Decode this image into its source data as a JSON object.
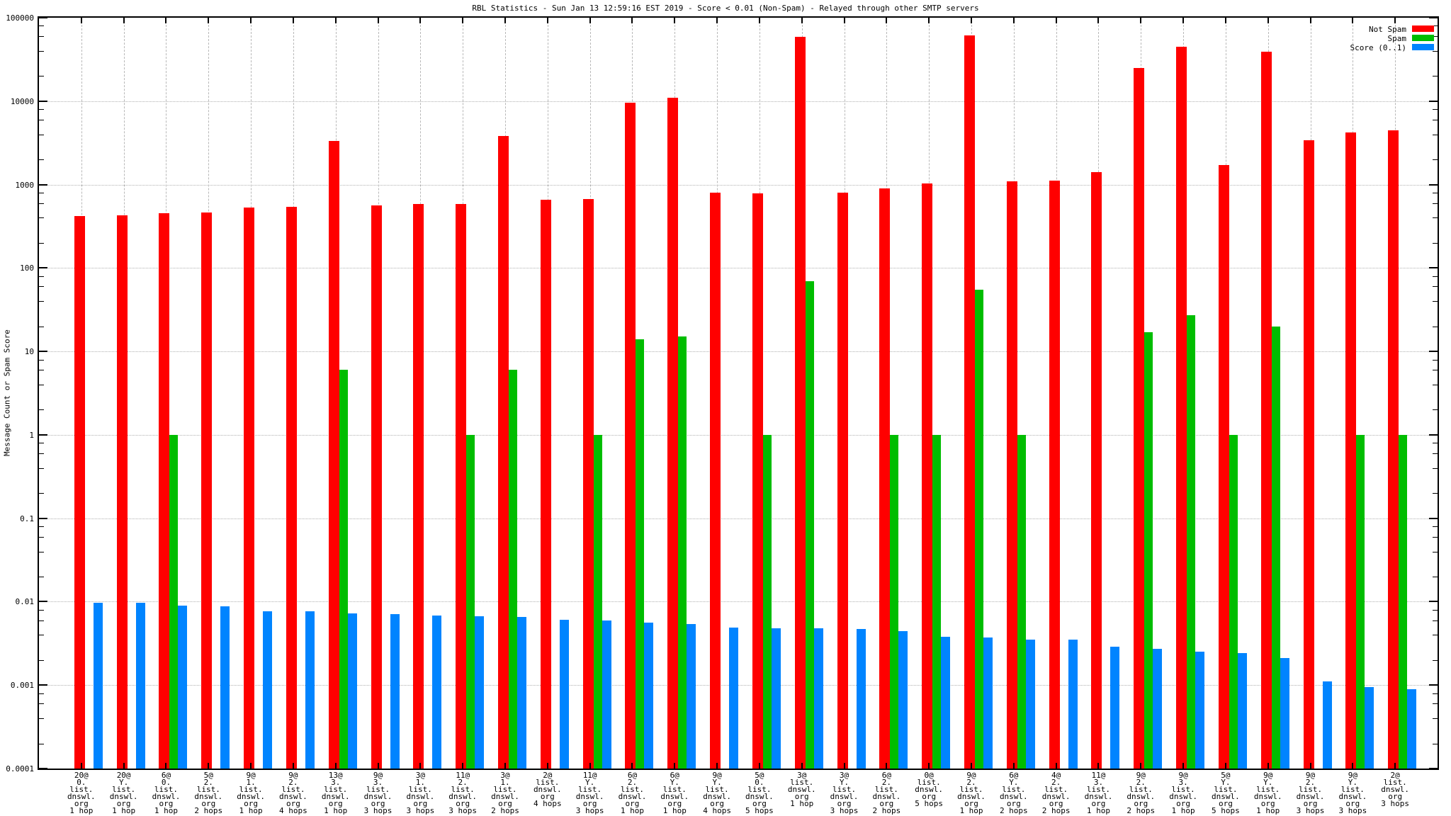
{
  "chart_data": {
    "type": "bar",
    "title": "RBL Statistics - Sun Jan 13 12:59:16 EST 2019 - Score < 0.01 (Non-Spam) - Relayed through other SMTP servers",
    "ylabel": "Message Count or Spam Score",
    "xlabel": "",
    "y_scale": "log",
    "ylim": [
      0.0001,
      100000
    ],
    "ytick_labels": [
      "100000",
      "10000",
      "1000",
      "100",
      "10",
      "1",
      "0.1",
      "0.01",
      "0.001",
      "0.0001"
    ],
    "grid": true,
    "legend_position": "top-right-inside",
    "grid_color": "#b8b8b8",
    "categories": [
      [
        "20@",
        "0.",
        "list.",
        "dnswl.",
        "org",
        "1 hop"
      ],
      [
        "20@",
        "Y.",
        "list.",
        "dnswl.",
        "org",
        "1 hop"
      ],
      [
        "6@",
        "0.",
        "list.",
        "dnswl.",
        "org",
        "1 hop"
      ],
      [
        "5@",
        "2.",
        "list.",
        "dnswl.",
        "org",
        "2 hops"
      ],
      [
        "9@",
        "1.",
        "list.",
        "dnswl.",
        "org",
        "1 hop"
      ],
      [
        "9@",
        "2.",
        "list.",
        "dnswl.",
        "org",
        "4 hops"
      ],
      [
        "13@",
        "3.",
        "list.",
        "dnswl.",
        "org",
        "1 hop"
      ],
      [
        "9@",
        "3.",
        "list.",
        "dnswl.",
        "org",
        "3 hops"
      ],
      [
        "3@",
        "1.",
        "list.",
        "dnswl.",
        "org",
        "3 hops"
      ],
      [
        "11@",
        "2.",
        "list.",
        "dnswl.",
        "org",
        "3 hops"
      ],
      [
        "3@",
        "1.",
        "list.",
        "dnswl.",
        "org",
        "2 hops"
      ],
      [
        "2@",
        "list.",
        "dnswl.",
        "org",
        "4 hops"
      ],
      [
        "11@",
        "Y.",
        "list.",
        "dnswl.",
        "org",
        "3 hops"
      ],
      [
        "6@",
        "2.",
        "list.",
        "dnswl.",
        "org",
        "1 hop"
      ],
      [
        "6@",
        "Y.",
        "list.",
        "dnswl.",
        "org",
        "1 hop"
      ],
      [
        "9@",
        "Y.",
        "list.",
        "dnswl.",
        "org",
        "4 hops"
      ],
      [
        "5@",
        "0.",
        "list.",
        "dnswl.",
        "org",
        "5 hops"
      ],
      [
        "3@",
        "list.",
        "dnswl.",
        "org",
        "1 hop"
      ],
      [
        "3@",
        "Y.",
        "list.",
        "dnswl.",
        "org",
        "3 hops"
      ],
      [
        "6@",
        "2.",
        "list.",
        "dnswl.",
        "org",
        "2 hops"
      ],
      [
        "0@",
        "list.",
        "dnswl.",
        "org",
        "5 hops"
      ],
      [
        "9@",
        "2.",
        "list.",
        "dnswl.",
        "org",
        "1 hop"
      ],
      [
        "6@",
        "Y.",
        "list.",
        "dnswl.",
        "org",
        "2 hops"
      ],
      [
        "4@",
        "2.",
        "list.",
        "dnswl.",
        "org",
        "2 hops"
      ],
      [
        "11@",
        "3.",
        "list.",
        "dnswl.",
        "org",
        "1 hop"
      ],
      [
        "9@",
        "2.",
        "list.",
        "dnswl.",
        "org",
        "2 hops"
      ],
      [
        "9@",
        "3.",
        "list.",
        "dnswl.",
        "org",
        "1 hop"
      ],
      [
        "5@",
        "Y.",
        "list.",
        "dnswl.",
        "org",
        "5 hops"
      ],
      [
        "9@",
        "Y.",
        "list.",
        "dnswl.",
        "org",
        "1 hop"
      ],
      [
        "9@",
        "2.",
        "list.",
        "dnswl.",
        "org",
        "3 hops"
      ],
      [
        "9@",
        "Y.",
        "list.",
        "dnswl.",
        "org",
        "3 hops"
      ],
      [
        "2@",
        "list.",
        "dnswl.",
        "org",
        "3 hops"
      ]
    ],
    "series": [
      {
        "name": "Not Spam",
        "color": "#ff0000",
        "values": [
          420,
          430,
          450,
          465,
          535,
          545,
          3300,
          560,
          580,
          590,
          3800,
          660,
          675,
          9500,
          11000,
          800,
          780,
          59000,
          795,
          900,
          1040,
          61000,
          1100,
          1120,
          1400,
          25000,
          45000,
          1700,
          39000,
          3400,
          4200,
          4500
        ]
      },
      {
        "name": "Spam",
        "color": "#00bd00",
        "values": [
          null,
          null,
          1,
          null,
          null,
          null,
          6,
          null,
          null,
          1,
          6,
          null,
          1,
          14,
          15,
          null,
          1,
          70,
          null,
          1,
          1,
          55,
          1,
          null,
          null,
          17,
          27,
          1,
          20,
          null,
          1,
          1
        ]
      },
      {
        "name": "Score (0..1)",
        "color": "#0084ff",
        "values": [
          0.0097,
          0.0097,
          0.009,
          0.0088,
          0.0077,
          0.0076,
          0.0072,
          0.0071,
          0.0068,
          0.0067,
          0.0065,
          0.0061,
          0.0059,
          0.0056,
          0.0054,
          0.0049,
          0.0048,
          0.0048,
          0.0047,
          0.0044,
          0.0038,
          0.0037,
          0.0035,
          0.0035,
          0.0029,
          0.0027,
          0.0025,
          0.0024,
          0.0021,
          0.0011,
          0.00095,
          0.0009
        ]
      }
    ]
  }
}
